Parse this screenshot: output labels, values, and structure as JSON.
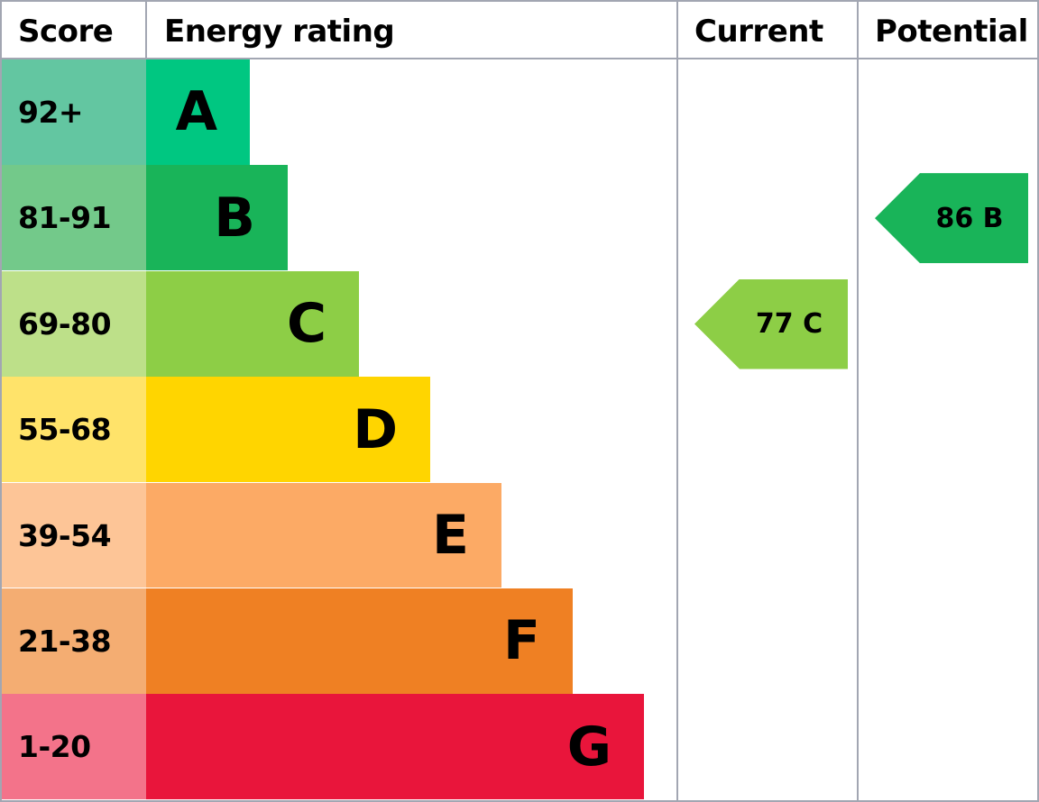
{
  "chart_data": {
    "type": "bar",
    "headers": {
      "score": "Score",
      "rating": "Energy rating",
      "current": "Current",
      "potential": "Potential"
    },
    "bands": [
      {
        "letter": "A",
        "range": "92+",
        "color": "#00c781",
        "score_color": "#63c6a1"
      },
      {
        "letter": "B",
        "range": "81-91",
        "color": "#19b459",
        "score_color": "#73c98a"
      },
      {
        "letter": "C",
        "range": "69-80",
        "color": "#8dce46",
        "score_color": "#bde089"
      },
      {
        "letter": "D",
        "range": "55-68",
        "color": "#ffd500",
        "score_color": "#ffe36a"
      },
      {
        "letter": "E",
        "range": "39-54",
        "color": "#fcaa65",
        "score_color": "#fdc597"
      },
      {
        "letter": "F",
        "range": "21-38",
        "color": "#ef8023",
        "score_color": "#f4ad72"
      },
      {
        "letter": "G",
        "range": "1-20",
        "color": "#e9153b",
        "score_color": "#f3738a"
      }
    ],
    "current": {
      "value": 77,
      "band": "C",
      "label": "77 C",
      "color": "#8dce46"
    },
    "potential": {
      "value": 86,
      "band": "B",
      "label": "86 B",
      "color": "#19b459"
    }
  }
}
